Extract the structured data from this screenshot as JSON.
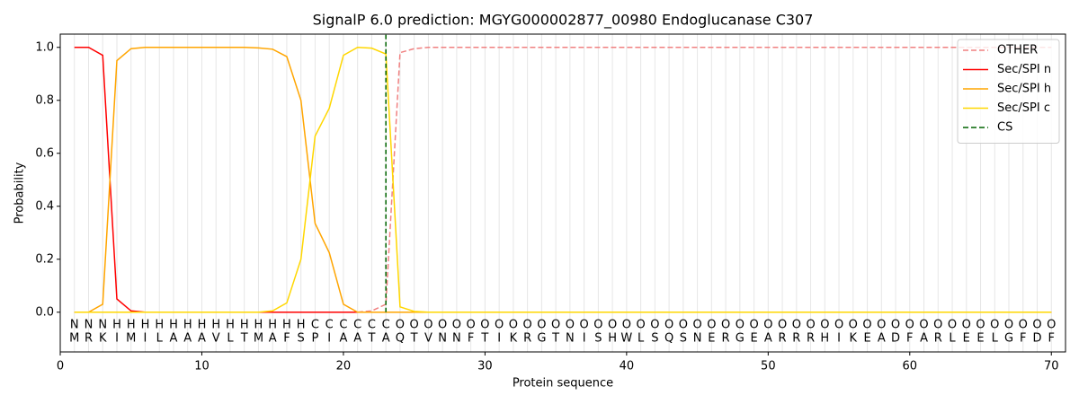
{
  "chart_data": {
    "type": "line",
    "title": "SignalP 6.0 prediction: MGYG000002877_00980 Endoglucanase C307",
    "x_label": "Protein sequence",
    "y_label": "Probability",
    "x": [
      1,
      2,
      3,
      4,
      5,
      6,
      7,
      8,
      9,
      10,
      11,
      12,
      13,
      14,
      15,
      16,
      17,
      18,
      19,
      20,
      21,
      22,
      23,
      24,
      25,
      26,
      27,
      28,
      29,
      30,
      31,
      32,
      33,
      34,
      35,
      36,
      37,
      38,
      39,
      40,
      41,
      42,
      43,
      44,
      45,
      46,
      47,
      48,
      49,
      50,
      51,
      52,
      53,
      54,
      55,
      56,
      57,
      58,
      59,
      60,
      61,
      62,
      63,
      64,
      65,
      66,
      67,
      68,
      69,
      70
    ],
    "residues": [
      "M",
      "R",
      "K",
      "I",
      "M",
      "I",
      "L",
      "A",
      "A",
      "A",
      "V",
      "L",
      "T",
      "M",
      "A",
      "F",
      "S",
      "P",
      "I",
      "A",
      "A",
      "T",
      "A",
      "Q",
      "T",
      "V",
      "N",
      "N",
      "F",
      "T",
      "I",
      "K",
      "R",
      "G",
      "T",
      "N",
      "I",
      "S",
      "H",
      "W",
      "L",
      "S",
      "Q",
      "S",
      "N",
      "E",
      "R",
      "G",
      "E",
      "A",
      "R",
      "R",
      "R",
      "H",
      "I",
      "K",
      "E",
      "A",
      "D",
      "F",
      "A",
      "R",
      "L",
      "E",
      "E",
      "L",
      "G",
      "F",
      "D",
      "F"
    ],
    "region_labels": [
      "N",
      "N",
      "N",
      "H",
      "H",
      "H",
      "H",
      "H",
      "H",
      "H",
      "H",
      "H",
      "H",
      "H",
      "H",
      "H",
      "H",
      "C",
      "C",
      "C",
      "C",
      "C",
      "C",
      "O",
      "O",
      "O",
      "O",
      "O",
      "O",
      "O",
      "O",
      "O",
      "O",
      "O",
      "O",
      "O",
      "O",
      "O",
      "O",
      "O",
      "O",
      "O",
      "O",
      "O",
      "O",
      "O",
      "O",
      "O",
      "O",
      "O",
      "O",
      "O",
      "O",
      "O",
      "O",
      "O",
      "O",
      "O",
      "O",
      "O",
      "O",
      "O",
      "O",
      "O",
      "O",
      "O",
      "O",
      "O",
      "O",
      "O"
    ],
    "region_colors": {
      "N": "#ff0000",
      "H": "#ffa500",
      "C": "#ffd700",
      "O": "#808080"
    },
    "series": [
      {
        "name": "OTHER",
        "color": "#f08080",
        "dashed": true,
        "values": [
          0,
          0,
          0,
          0,
          0,
          0,
          0,
          0,
          0,
          0,
          0,
          0,
          0,
          0,
          0,
          0,
          0,
          0,
          0,
          0,
          0,
          0.005,
          0.03,
          0.98,
          0.995,
          1,
          1,
          1,
          1,
          1,
          1,
          1,
          1,
          1,
          1,
          1,
          1,
          1,
          1,
          1,
          1,
          1,
          1,
          1,
          1,
          1,
          1,
          1,
          1,
          1,
          1,
          1,
          1,
          1,
          1,
          1,
          1,
          1,
          1,
          1,
          1,
          1,
          1,
          1,
          1,
          1,
          1,
          1,
          1,
          1
        ]
      },
      {
        "name": "Sec/SPI n",
        "color": "#ff0000",
        "values": [
          1,
          1,
          0.97,
          0.05,
          0.005,
          0,
          0,
          0,
          0,
          0,
          0,
          0,
          0,
          0,
          0,
          0,
          0,
          0,
          0,
          0,
          0,
          0,
          0,
          0,
          0,
          0,
          0,
          0,
          0,
          0,
          0,
          0,
          0,
          0,
          0,
          0,
          0,
          0,
          0,
          0,
          0,
          0,
          0,
          0,
          0,
          0,
          0,
          0,
          0,
          0,
          0,
          0,
          0,
          0,
          0,
          0,
          0,
          0,
          0,
          0,
          0,
          0,
          0,
          0,
          0,
          0,
          0,
          0,
          0,
          0
        ]
      },
      {
        "name": "Sec/SPI h",
        "color": "#ffa500",
        "values": [
          0,
          0,
          0.03,
          0.95,
          0.995,
          1,
          1,
          1,
          1,
          1,
          1,
          1,
          1,
          0.998,
          0.993,
          0.965,
          0.8,
          0.335,
          0.225,
          0.03,
          0,
          0,
          0,
          0,
          0,
          0,
          0,
          0,
          0,
          0,
          0,
          0,
          0,
          0,
          0,
          0,
          0,
          0,
          0,
          0,
          0,
          0,
          0,
          0,
          0,
          0,
          0,
          0,
          0,
          0,
          0,
          0,
          0,
          0,
          0,
          0,
          0,
          0,
          0,
          0,
          0,
          0,
          0,
          0,
          0,
          0,
          0,
          0,
          0,
          0
        ]
      },
      {
        "name": "Sec/SPI c",
        "color": "#ffd700",
        "values": [
          0,
          0,
          0,
          0,
          0,
          0,
          0,
          0,
          0,
          0,
          0,
          0,
          0,
          0,
          0.005,
          0.035,
          0.2,
          0.665,
          0.77,
          0.97,
          1,
          0.997,
          0.975,
          0.02,
          0.003,
          0,
          0,
          0,
          0,
          0,
          0,
          0,
          0,
          0,
          0,
          0,
          0,
          0,
          0,
          0,
          0,
          0,
          0,
          0,
          0,
          0,
          0,
          0,
          0,
          0,
          0,
          0,
          0,
          0,
          0,
          0,
          0,
          0,
          0,
          0,
          0,
          0,
          0,
          0,
          0,
          0,
          0,
          0,
          0,
          0
        ]
      }
    ],
    "cs": {
      "name": "CS",
      "x": 23,
      "color": "#006400"
    },
    "xlim": [
      0,
      71
    ],
    "ylim": [
      -0.15,
      1.05
    ],
    "xticks": [
      0,
      10,
      20,
      30,
      40,
      50,
      60,
      70
    ],
    "yticks": [
      {
        "value": 0,
        "label": "0.0"
      },
      {
        "value": 0.2,
        "label": "0.2"
      },
      {
        "value": 0.4,
        "label": "0.4"
      },
      {
        "value": 0.6,
        "label": "0.6"
      },
      {
        "value": 0.8,
        "label": "0.8"
      },
      {
        "value": 1,
        "label": "1.0"
      }
    ],
    "legend": "upper right"
  }
}
